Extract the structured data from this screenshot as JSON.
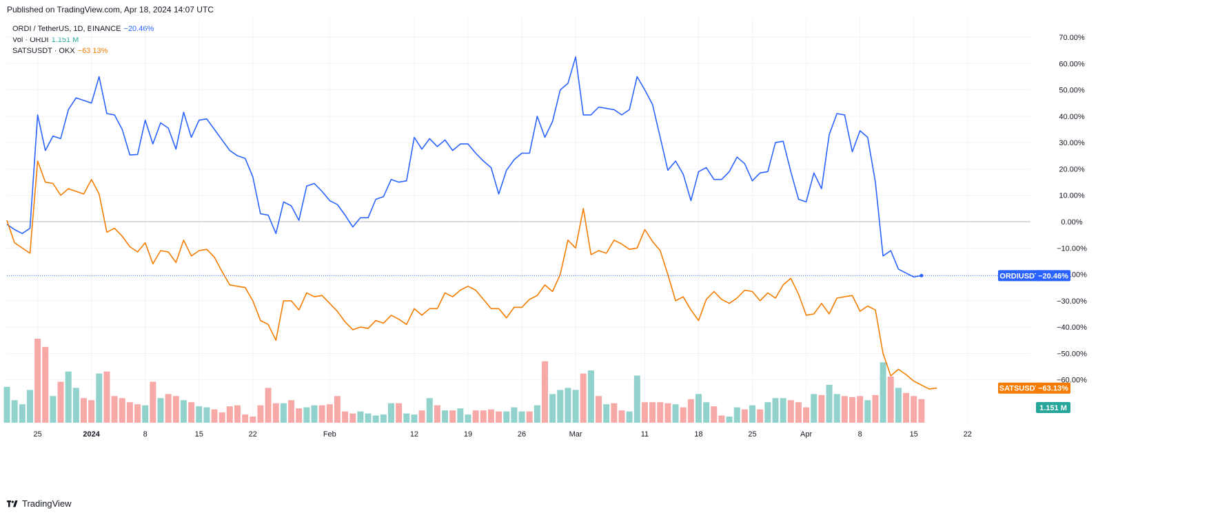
{
  "header": {
    "published": "Published on TradingView.com, Apr 18, 2024 14:07 UTC"
  },
  "footer": {
    "brand": "TradingView"
  },
  "legend": {
    "main": {
      "label": "ORDI / TetherUS, 1D, BINANCE",
      "value": "−20.46%",
      "color": "#2962ff"
    },
    "vol": {
      "label": "Vol · ORDI",
      "value": "1.151 M",
      "color": "#26a69a"
    },
    "compare": {
      "label": "SATSUSDT · OKX",
      "value": "−63.13%",
      "color": "#f57c00"
    }
  },
  "chart_data": {
    "type": "line",
    "x_ticks": [
      "25",
      "2024",
      "8",
      "15",
      "22",
      "Feb",
      "12",
      "19",
      "26",
      "Mar",
      "11",
      "18",
      "25",
      "Apr",
      "8",
      "15",
      "22"
    ],
    "x_tick_days": [
      4,
      11,
      18,
      25,
      32,
      42,
      53,
      60,
      67,
      74,
      83,
      90,
      97,
      104,
      111,
      118,
      125
    ],
    "y_ticks": [
      "70.00%",
      "60.00%",
      "50.00%",
      "40.00%",
      "30.00%",
      "20.00%",
      "10.00%",
      "0.00%",
      "−10.00%",
      "−20.00%",
      "−30.00%",
      "−40.00%",
      "−50.00%",
      "−60.00%"
    ],
    "ylim": [
      -63,
      72
    ],
    "zero_line": 0,
    "series": [
      {
        "name": "ORDIUSDT",
        "color": "#2962ff",
        "last_label": "−20.46%",
        "values": [
          -1,
          -3,
          -4.5,
          -2.5,
          40.5,
          27,
          32.5,
          31.5,
          42.5,
          47,
          46,
          45,
          55,
          41,
          40.5,
          35,
          25.3,
          25.5,
          38.5,
          29.5,
          37.5,
          35.5,
          27.5,
          41.5,
          32,
          38.5,
          39,
          35,
          31,
          27,
          25,
          24,
          17,
          3,
          2.5,
          -4.5,
          7.5,
          6,
          0.5,
          13.5,
          14.5,
          11.5,
          8,
          6.5,
          2.5,
          -2,
          1.5,
          1.5,
          8.5,
          9.5,
          16,
          15,
          15.5,
          32,
          27.5,
          31.5,
          28.5,
          31,
          27,
          29.5,
          29.5,
          26,
          23,
          20.5,
          10.5,
          19.5,
          23.5,
          26,
          26,
          40,
          32,
          38,
          50,
          52.5,
          62.5,
          40.5,
          40.5,
          43.5,
          43,
          42.5,
          40.5,
          42.5,
          55,
          50,
          44.5,
          32,
          19.5,
          23,
          18,
          8,
          19,
          20.5,
          16,
          16,
          19,
          24.5,
          22,
          15.5,
          18.5,
          19,
          30,
          30.5,
          19,
          8.5,
          7.5,
          18.5,
          12.5,
          33,
          41,
          40.5,
          26.5,
          34.5,
          32,
          15,
          -13,
          -11,
          -18,
          -19.5,
          -21,
          -20.46
        ]
      },
      {
        "name": "SATSUSDT",
        "color": "#f57c00",
        "last_label": "−63.13%",
        "values": [
          0.5,
          -8,
          -10,
          -12,
          23,
          15,
          14.5,
          10,
          12.5,
          11.5,
          10.5,
          16,
          10.5,
          -4,
          -2.5,
          -5.5,
          -9.5,
          -11.5,
          -8,
          -16,
          -11,
          -11.5,
          -15.5,
          -7,
          -13,
          -11,
          -10.5,
          -13.5,
          -19,
          -24,
          -24.5,
          -25,
          -30,
          -37.5,
          -39,
          -45,
          -30,
          -30,
          -33.5,
          -27,
          -28.5,
          -28,
          -31,
          -34,
          -38,
          -41,
          -40,
          -40.5,
          -37.5,
          -38.5,
          -35.5,
          -37,
          -39,
          -33,
          -35.5,
          -33,
          -33,
          -27,
          -28.5,
          -26,
          -24.5,
          -26,
          -29.5,
          -33,
          -33,
          -36.5,
          -32.5,
          -32.5,
          -29.5,
          -28,
          -24,
          -26.5,
          -20,
          -7,
          -10,
          5,
          -12.5,
          -11,
          -12,
          -7,
          -8.5,
          -10.5,
          -10,
          -3,
          -7.5,
          -11,
          -20,
          -30,
          -28.5,
          -33.5,
          -37.5,
          -29.5,
          -26.5,
          -29.5,
          -31,
          -29,
          -26,
          -26.5,
          -30,
          -27,
          -29,
          -24,
          -21.5,
          -27.5,
          -35.5,
          -35,
          -31,
          -35,
          -29,
          -28.5,
          -28,
          -34,
          -32,
          -33.5,
          -50,
          -58.5,
          -56,
          -58,
          -60.5,
          -62,
          -63.5,
          -63.13
        ]
      }
    ],
    "volume": {
      "name": "Vol · ORDI",
      "last_label": "1.151 M",
      "up_color": "#92d2cc",
      "down_color": "#f7a9a7",
      "values": [
        1.75,
        1.1,
        0.9,
        1.6,
        4.1,
        3.7,
        1.3,
        2.0,
        2.5,
        1.7,
        1.2,
        1.1,
        2.4,
        2.5,
        1.3,
        1.2,
        1.0,
        0.9,
        0.85,
        2.0,
        1.2,
        1.4,
        1.3,
        1.1,
        1.0,
        0.8,
        0.75,
        0.65,
        0.5,
        0.8,
        0.85,
        0.4,
        0.3,
        0.85,
        1.7,
        0.95,
        0.95,
        1.1,
        0.7,
        0.75,
        0.85,
        0.85,
        0.9,
        1.3,
        0.55,
        0.45,
        0.55,
        0.45,
        0.35,
        0.4,
        0.95,
        0.95,
        0.45,
        0.4,
        0.6,
        1.2,
        0.85,
        0.6,
        0.6,
        0.7,
        0.4,
        0.6,
        0.6,
        0.65,
        0.55,
        0.55,
        0.75,
        0.55,
        0.55,
        0.85,
        3.0,
        1.4,
        1.6,
        1.7,
        1.6,
        2.4,
        2.55,
        1.3,
        0.9,
        0.95,
        0.6,
        0.55,
        2.3,
        1.0,
        1.0,
        1.0,
        0.95,
        0.9,
        0.75,
        1.15,
        1.4,
        1.0,
        0.8,
        0.35,
        0.3,
        0.75,
        0.65,
        0.85,
        0.65,
        1.0,
        1.2,
        1.2,
        1.1,
        1.0,
        0.75,
        1.4,
        1.35,
        1.85,
        1.4,
        1.3,
        1.25,
        1.3,
        1.1,
        1.35,
        2.95,
        2.25,
        1.7,
        1.45,
        1.3,
        1.151
      ],
      "direction": [
        1,
        1,
        1,
        1,
        0,
        0,
        1,
        0,
        1,
        1,
        0,
        0,
        1,
        0,
        0,
        0,
        0,
        0,
        1,
        0,
        1,
        0,
        0,
        1,
        0,
        1,
        1,
        0,
        0,
        0,
        0,
        0,
        0,
        0,
        0,
        0,
        1,
        0,
        0,
        1,
        1,
        0,
        0,
        0,
        0,
        0,
        1,
        1,
        1,
        1,
        1,
        0,
        1,
        1,
        0,
        1,
        0,
        1,
        0,
        1,
        1,
        0,
        0,
        0,
        0,
        1,
        1,
        1,
        0,
        1,
        0,
        1,
        1,
        1,
        1,
        0,
        1,
        0,
        1,
        0,
        0,
        1,
        1,
        0,
        0,
        0,
        0,
        1,
        0,
        0,
        1,
        1,
        0,
        0,
        1,
        1,
        0,
        1,
        0,
        1,
        1,
        1,
        0,
        0,
        0,
        1,
        0,
        1,
        1,
        0,
        0,
        0,
        1,
        0,
        1,
        0,
        1,
        0,
        0,
        0,
        1
      ]
    }
  }
}
